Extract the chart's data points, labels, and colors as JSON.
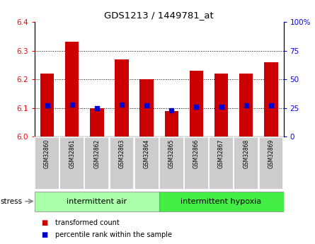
{
  "title": "GDS1213 / 1449781_at",
  "samples": [
    "GSM32860",
    "GSM32861",
    "GSM32862",
    "GSM32863",
    "GSM32864",
    "GSM32865",
    "GSM32866",
    "GSM32867",
    "GSM32868",
    "GSM32869"
  ],
  "transformed_counts": [
    6.22,
    6.33,
    6.1,
    6.27,
    6.2,
    6.09,
    6.23,
    6.22,
    6.22,
    6.26
  ],
  "percentile_ranks": [
    27,
    28,
    25,
    28,
    27,
    23,
    26,
    26,
    27,
    27
  ],
  "ylim_left": [
    6.0,
    6.4
  ],
  "ylim_right": [
    0,
    100
  ],
  "bar_color": "#cc0000",
  "dot_color": "#0000cc",
  "bar_bottom": 6.0,
  "group1_label": "intermittent air",
  "group2_label": "intermittent hypoxia",
  "group1_indices": [
    0,
    1,
    2,
    3,
    4
  ],
  "group2_indices": [
    5,
    6,
    7,
    8,
    9
  ],
  "stress_label": "stress",
  "legend1_label": "transformed count",
  "legend2_label": "percentile rank within the sample",
  "group1_bg": "#aaffaa",
  "group2_bg": "#44ee44",
  "ticklabel_bg": "#cccccc",
  "yticks_left": [
    6.0,
    6.1,
    6.2,
    6.3,
    6.4
  ],
  "yticks_right": [
    0,
    25,
    50,
    75,
    100
  ],
  "grid_ticks": [
    6.1,
    6.2,
    6.3
  ]
}
